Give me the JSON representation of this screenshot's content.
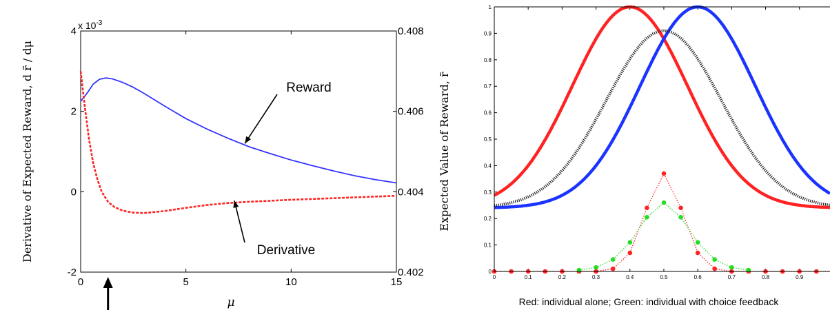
{
  "chart_data": [
    {
      "type": "line",
      "x_label": "μ",
      "x_ticks": [
        "0",
        "5",
        "10",
        "15"
      ],
      "xlim": [
        0,
        15
      ],
      "left_axis": {
        "label": "Derivative of Expected Reward, d r̃ / dμ",
        "exponent_label": "x 10",
        "exponent_power": "-3",
        "ticks": [
          "-2",
          "0",
          "2",
          "4"
        ],
        "ylim": [
          -2,
          4
        ]
      },
      "right_axis": {
        "label": "Expected Value of Reward, r̃",
        "ticks": [
          "0.402",
          "0.404",
          "0.406",
          "0.408"
        ],
        "ylim": [
          0.402,
          0.408
        ]
      },
      "series": [
        {
          "name": "Reward",
          "axis": "right",
          "color": "#3333ff",
          "style": "solid",
          "x": [
            0,
            0.3,
            0.6,
            0.9,
            1.2,
            1.5,
            2.0,
            2.5,
            3,
            4,
            5,
            6,
            7,
            8,
            9,
            10,
            11,
            12,
            13,
            14,
            15
          ],
          "y": [
            0.40625,
            0.40645,
            0.40668,
            0.4068,
            0.40683,
            0.40681,
            0.40672,
            0.4066,
            0.40645,
            0.40613,
            0.40582,
            0.40556,
            0.40533,
            0.40512,
            0.40495,
            0.40479,
            0.40465,
            0.40452,
            0.4044,
            0.4043,
            0.40422
          ]
        },
        {
          "name": "Derivative",
          "axis": "left",
          "color": "#ff2222",
          "style": "dashed",
          "x": [
            0,
            0.2,
            0.4,
            0.6,
            0.8,
            1.0,
            1.3,
            1.6,
            2.0,
            2.5,
            3,
            4,
            5,
            6,
            7,
            8,
            10,
            12,
            15
          ],
          "y": [
            3.0,
            2.1,
            1.3,
            0.7,
            0.3,
            0.0,
            -0.25,
            -0.38,
            -0.47,
            -0.52,
            -0.53,
            -0.48,
            -0.4,
            -0.33,
            -0.28,
            -0.25,
            -0.2,
            -0.16,
            -0.1
          ]
        }
      ],
      "annotations": [
        {
          "text": "Reward",
          "target_x": 7.8,
          "target_axis": "right",
          "target_y": 0.4052
        },
        {
          "text": "Derivative",
          "target_x": 7.3,
          "target_axis": "left",
          "target_y": -0.22
        }
      ],
      "marker_arrow_x": 1.3
    },
    {
      "type": "line",
      "caption": "Red: individual alone; Green: individual with choice feedback",
      "x_ticks": [
        "0",
        "0.1",
        "0.2",
        "0.3",
        "0.4",
        "0.5",
        "0.6",
        "0.7",
        "0.8",
        "0.9"
      ],
      "y_ticks": [
        "0",
        "0.1",
        "0.2",
        "0.3",
        "0.4",
        "0.5",
        "0.6",
        "0.7",
        "0.8",
        "0.9",
        "1"
      ],
      "xlim": [
        0,
        1
      ],
      "ylim": [
        0,
        1
      ],
      "gaussian_curves": [
        {
          "color": "#ff2222",
          "style": "solid",
          "center": 0.4,
          "sigma": 0.17,
          "peak": 1.0,
          "base": 0.24
        },
        {
          "color": "#1a33ff",
          "style": "solid",
          "center": 0.6,
          "sigma": 0.17,
          "peak": 1.0,
          "base": 0.24
        },
        {
          "color": "#222222",
          "style": "dotted",
          "center": 0.5,
          "sigma": 0.17,
          "peak": 0.91,
          "base": 0.24
        }
      ],
      "series": [
        {
          "color": "#ff2222",
          "style": "dotted-markers",
          "x": [
            0,
            0.05,
            0.1,
            0.15,
            0.2,
            0.25,
            0.3,
            0.35,
            0.4,
            0.45,
            0.5,
            0.55,
            0.6,
            0.65,
            0.7,
            0.75,
            0.8,
            0.85,
            0.9,
            0.95,
            1.0
          ],
          "y": [
            0,
            0,
            0,
            0,
            0,
            0,
            0,
            0.01,
            0.07,
            0.24,
            0.37,
            0.24,
            0.07,
            0.01,
            0,
            0,
            0,
            0,
            0,
            0,
            0
          ]
        },
        {
          "color": "#22dd22",
          "style": "dotted-markers",
          "x": [
            0.25,
            0.3,
            0.35,
            0.4,
            0.45,
            0.5,
            0.55,
            0.6,
            0.65,
            0.7,
            0.75
          ],
          "y": [
            0.005,
            0.015,
            0.045,
            0.11,
            0.205,
            0.26,
            0.205,
            0.11,
            0.045,
            0.015,
            0.005
          ]
        }
      ]
    }
  ]
}
